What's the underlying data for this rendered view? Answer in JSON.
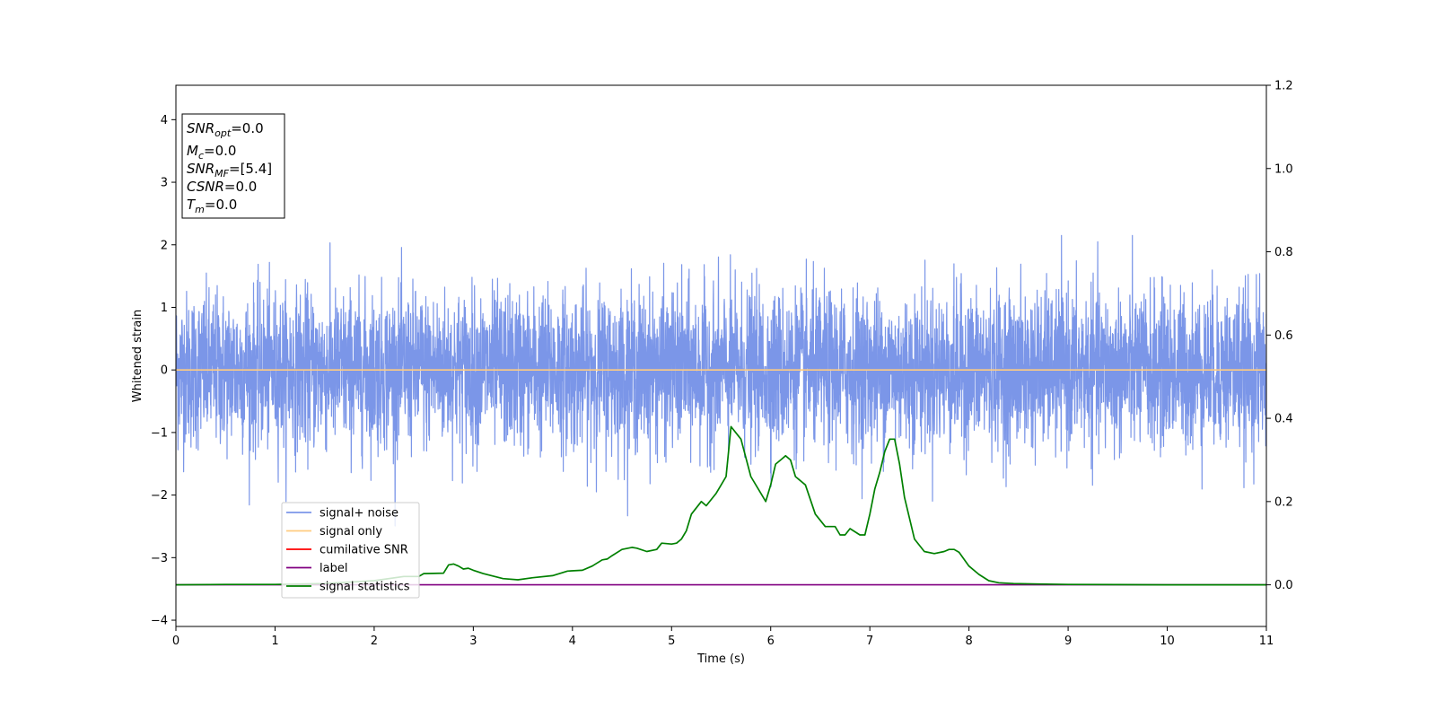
{
  "chart_data": {
    "type": "line",
    "xlabel": "Time (s)",
    "ylabel": "Whitened strain",
    "xlim": [
      0,
      11
    ],
    "ylim_left": [
      -4.1,
      4.55
    ],
    "ylim_right": [
      -0.1,
      1.2
    ],
    "x_ticks": [
      0,
      1,
      2,
      3,
      4,
      5,
      6,
      7,
      8,
      9,
      10,
      11
    ],
    "y_ticks_left": [
      -4,
      -3,
      -2,
      -1,
      0,
      1,
      2,
      3,
      4
    ],
    "y_ticks_right": [
      0.0,
      0.2,
      0.4,
      0.6,
      0.8,
      1.0,
      1.2
    ],
    "y_ticks_right_labels": [
      "0.0",
      "0.2",
      "0.4",
      "0.6",
      "0.8",
      "1.0",
      "1.2"
    ],
    "grid": false,
    "legend_position": "lower-left",
    "info_box": [
      {
        "sym": "SNR",
        "sub": "opt",
        "rest": "=0.0"
      },
      {
        "sym": "M",
        "sub": "c",
        "rest": "=0.0"
      },
      {
        "sym": "SNR",
        "sub": "MF",
        "rest": "=[5.4]"
      },
      {
        "sym": "CSNR",
        "sub": "",
        "rest": "=0.0"
      },
      {
        "sym": "T",
        "sub": "m",
        "rest": "=0.0"
      }
    ],
    "series": [
      {
        "name": "signal+ noise",
        "color": "#7b96e8",
        "axis": "left",
        "kind": "noise",
        "envelope_approx": {
          "range": [
            0,
            11
          ],
          "typical_amplitude": 1.0,
          "max_approx": 2.15,
          "min_approx": -2.5
        }
      },
      {
        "name": "signal only",
        "color": "#ffcc80",
        "axis": "left",
        "x": [
          0,
          11
        ],
        "y": [
          0,
          0
        ]
      },
      {
        "name": "cumilative SNR",
        "color": "#ff0000",
        "axis": "right",
        "x": [],
        "y": []
      },
      {
        "name": "label",
        "color": "#800080",
        "axis": "right",
        "x": [
          0,
          11
        ],
        "y": [
          0,
          0
        ]
      },
      {
        "name": "signal statistics",
        "color": "#008000",
        "axis": "right",
        "x": [
          0,
          0.5,
          1.0,
          1.5,
          2.0,
          2.3,
          2.45,
          2.5,
          2.7,
          2.75,
          2.8,
          2.85,
          2.9,
          2.95,
          3.0,
          3.1,
          3.3,
          3.45,
          3.6,
          3.8,
          3.95,
          4.1,
          4.2,
          4.3,
          4.35,
          4.4,
          4.5,
          4.6,
          4.65,
          4.75,
          4.85,
          4.9,
          5.0,
          5.05,
          5.1,
          5.15,
          5.2,
          5.3,
          5.35,
          5.45,
          5.5,
          5.55,
          5.6,
          5.7,
          5.8,
          5.9,
          5.95,
          6.0,
          6.05,
          6.1,
          6.15,
          6.2,
          6.25,
          6.35,
          6.45,
          6.55,
          6.65,
          6.7,
          6.75,
          6.8,
          6.9,
          6.95,
          7.0,
          7.05,
          7.1,
          7.15,
          7.2,
          7.25,
          7.3,
          7.35,
          7.45,
          7.55,
          7.65,
          7.75,
          7.8,
          7.85,
          7.9,
          8.0,
          8.1,
          8.2,
          8.3,
          8.45,
          8.7,
          9.0,
          9.5,
          10.0,
          10.5,
          11.0
        ],
        "y": [
          0.0,
          0.001,
          0.001,
          0.003,
          0.01,
          0.02,
          0.02,
          0.027,
          0.028,
          0.048,
          0.05,
          0.045,
          0.038,
          0.04,
          0.035,
          0.027,
          0.015,
          0.012,
          0.017,
          0.022,
          0.033,
          0.035,
          0.045,
          0.06,
          0.062,
          0.07,
          0.085,
          0.09,
          0.088,
          0.08,
          0.085,
          0.1,
          0.098,
          0.1,
          0.11,
          0.13,
          0.17,
          0.2,
          0.19,
          0.22,
          0.24,
          0.26,
          0.38,
          0.35,
          0.26,
          0.22,
          0.2,
          0.24,
          0.29,
          0.3,
          0.31,
          0.3,
          0.26,
          0.24,
          0.17,
          0.14,
          0.14,
          0.12,
          0.12,
          0.135,
          0.12,
          0.12,
          0.17,
          0.23,
          0.27,
          0.32,
          0.35,
          0.35,
          0.29,
          0.21,
          0.11,
          0.08,
          0.075,
          0.08,
          0.085,
          0.085,
          0.078,
          0.045,
          0.025,
          0.01,
          0.005,
          0.003,
          0.002,
          0.001,
          0.0005,
          0.0,
          0.0,
          0.0
        ]
      }
    ]
  }
}
